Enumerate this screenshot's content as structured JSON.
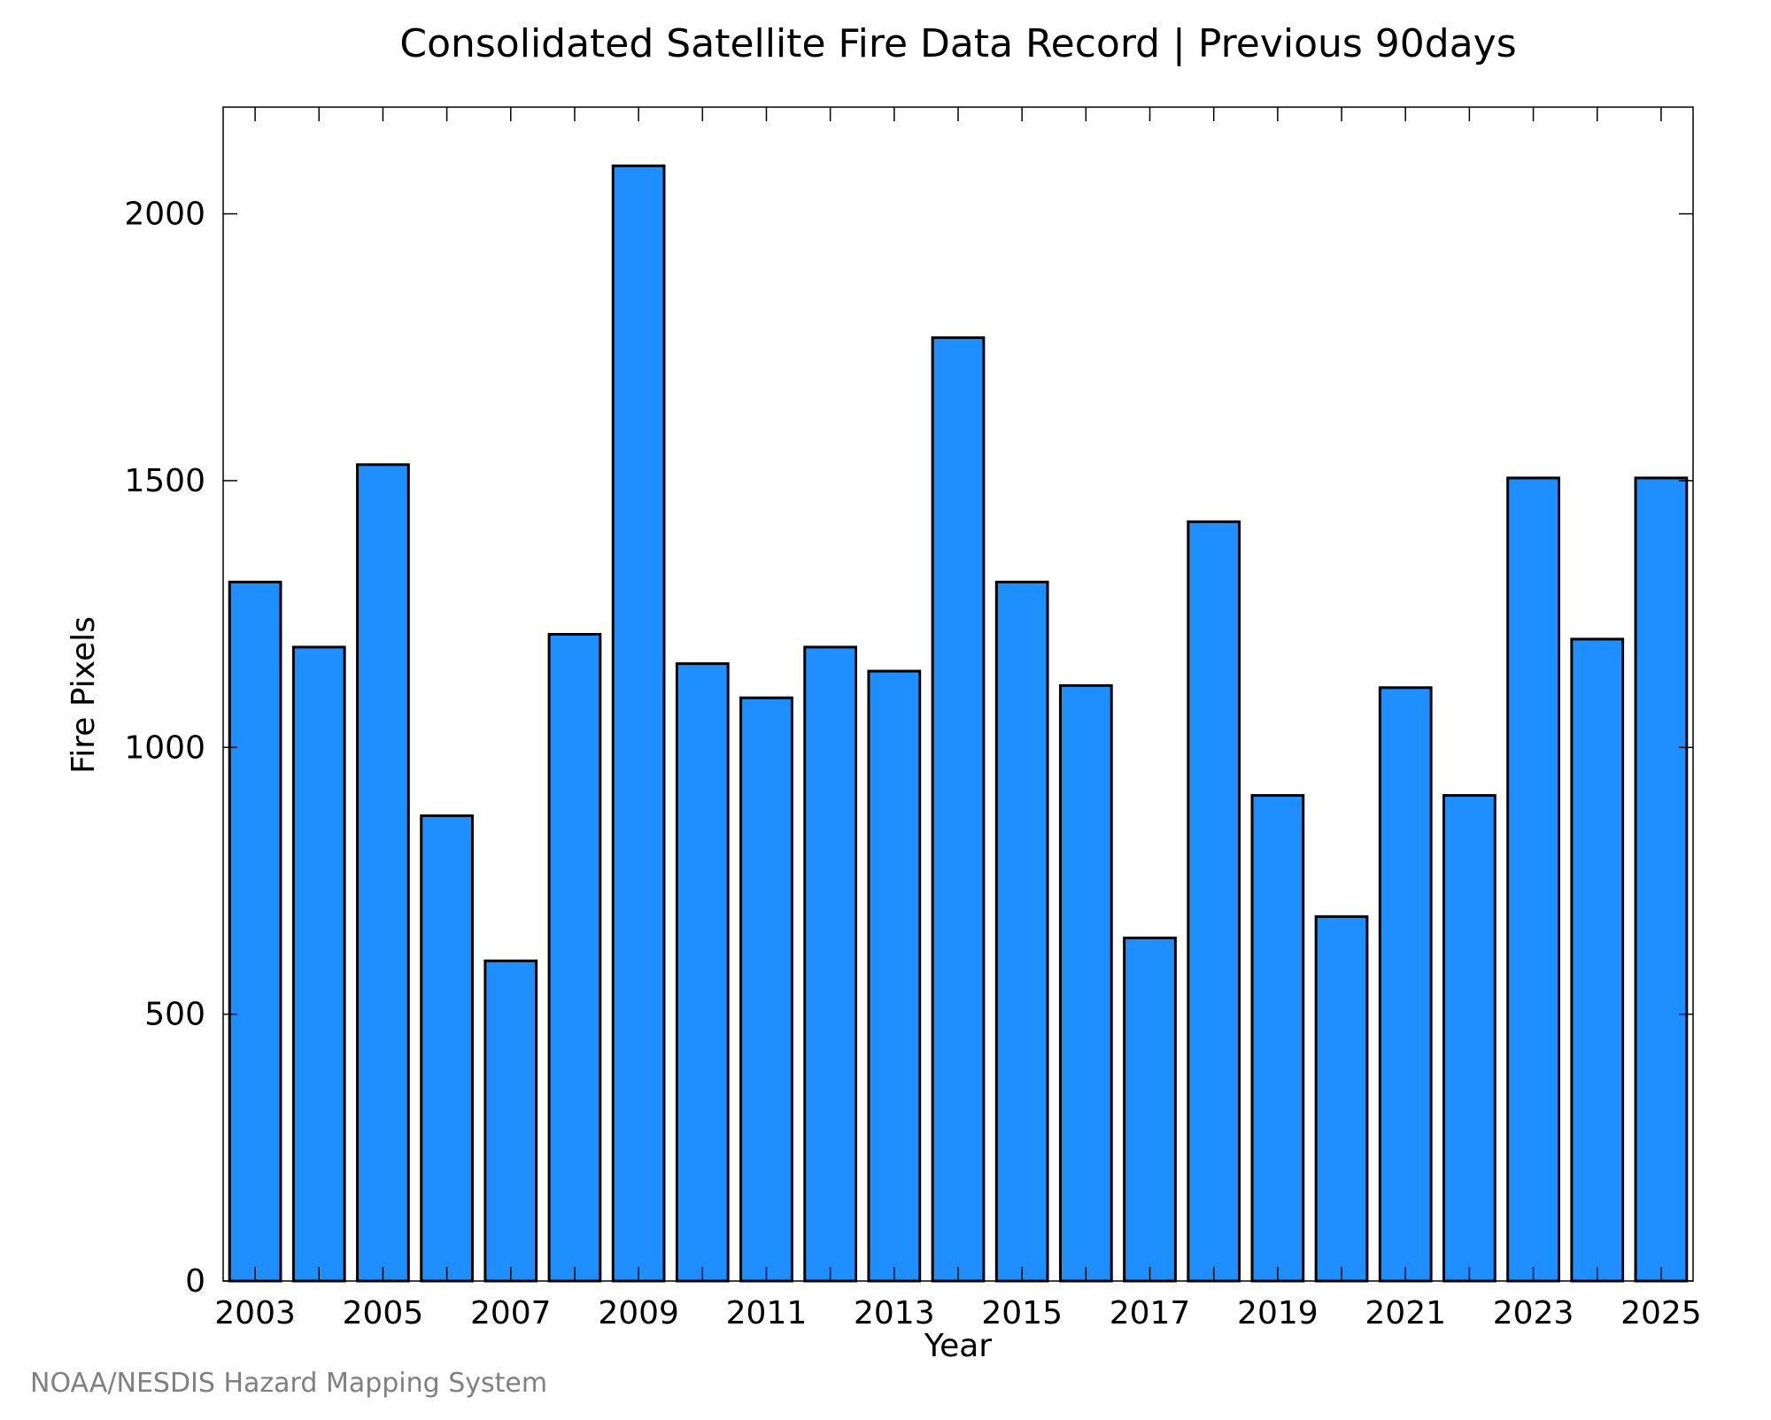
{
  "chart_data": {
    "type": "bar",
    "title": "Consolidated Satellite Fire Data Record | Previous 90days",
    "xlabel": "Year",
    "ylabel": "Fire Pixels",
    "categories": [
      "2003",
      "2004",
      "2005",
      "2006",
      "2007",
      "2008",
      "2009",
      "2010",
      "2011",
      "2012",
      "2013",
      "2014",
      "2015",
      "2016",
      "2017",
      "2018",
      "2019",
      "2020",
      "2021",
      "2022",
      "2023",
      "2024",
      "2025"
    ],
    "values": [
      1310,
      1188,
      1530,
      872,
      600,
      1212,
      2090,
      1157,
      1093,
      1188,
      1143,
      1768,
      1310,
      1116,
      643,
      1423,
      910,
      683,
      1112,
      910,
      1505,
      1203,
      1505
    ],
    "x_tick_labels": [
      "2003",
      "2005",
      "2007",
      "2009",
      "2011",
      "2013",
      "2015",
      "2017",
      "2019",
      "2021",
      "2023",
      "2025"
    ],
    "y_ticks": [
      0,
      500,
      1000,
      1500,
      2000
    ],
    "ylim": [
      0,
      2200
    ],
    "grid": false,
    "bar_color": "#1f8fff",
    "bar_edge_color": "#000000"
  },
  "footer": {
    "credit": "NOAA/NESDIS Hazard Mapping System"
  }
}
